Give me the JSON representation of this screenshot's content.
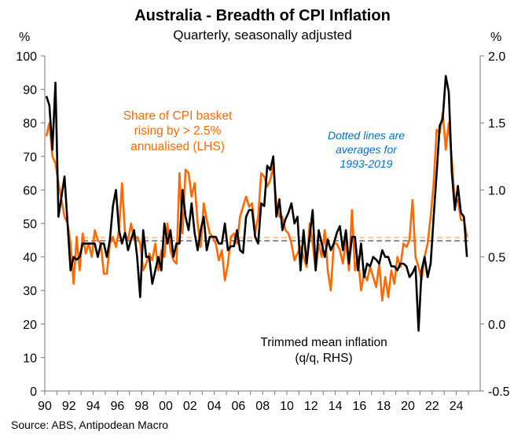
{
  "chart_data": {
    "type": "line",
    "title": "Australia - Breadth of CPI Inflation",
    "subtitle": "Quarterly, seasonally adjusted",
    "ylabel_left": "%",
    "ylabel_right": "%",
    "ylim_left": [
      0,
      100
    ],
    "ylim_right": [
      -0.5,
      2.0
    ],
    "yticks_left": [
      "0",
      "10",
      "20",
      "30",
      "40",
      "50",
      "60",
      "70",
      "80",
      "90",
      "100"
    ],
    "yticks_right": [
      "-0.5",
      "0.0",
      "0.5",
      "1.0",
      "1.5",
      "2.0"
    ],
    "xticks": [
      "90",
      "92",
      "94",
      "96",
      "98",
      "00",
      "02",
      "04",
      "06",
      "08",
      "10",
      "12",
      "14",
      "16",
      "18",
      "20",
      "22",
      "24"
    ],
    "x_start": "1990Q1",
    "x_end": "2024Q4",
    "frequency": "quarterly",
    "grid": false,
    "series": [
      {
        "name": "Share of CPI basket rising by > 2.5% annualised (LHS)",
        "axis": "left",
        "color": "#FF6A00",
        "values": [
          76,
          80,
          70,
          68,
          62,
          57,
          52,
          50,
          44,
          32,
          46,
          36,
          47,
          41,
          44,
          40,
          48,
          45,
          44,
          35,
          35,
          44,
          46,
          43,
          48,
          62,
          47,
          45,
          50,
          45,
          46,
          44,
          36,
          38,
          41,
          39,
          44,
          36,
          42,
          40,
          50,
          42,
          39,
          38,
          65,
          47,
          66,
          65,
          58,
          62,
          50,
          43,
          56,
          51,
          47,
          46,
          44,
          39,
          42,
          33,
          38,
          46,
          47,
          44,
          52,
          55,
          58,
          55,
          56,
          47,
          52,
          65,
          64,
          61,
          63,
          67,
          56,
          52,
          52,
          48,
          47,
          44,
          39,
          41,
          43,
          40,
          37,
          50,
          44,
          36,
          44,
          40,
          48,
          36,
          30,
          44,
          44,
          42,
          38,
          45,
          36,
          54,
          36,
          40,
          30,
          35,
          33,
          37,
          34,
          31,
          38,
          27,
          34,
          28,
          36,
          32,
          40,
          37,
          44,
          43,
          45,
          57,
          40,
          37,
          33,
          40,
          44,
          52,
          62,
          78,
          77,
          83,
          72,
          80,
          69,
          56,
          57,
          51,
          51,
          46
        ],
        "average_1993_2019": 45.8
      },
      {
        "name": "Trimmed mean inflation (q/q, RHS)",
        "axis": "right",
        "color": "#000000",
        "values": [
          1.7,
          1.63,
          1.3,
          1.8,
          0.8,
          0.95,
          1.1,
          0.75,
          0.4,
          0.5,
          0.48,
          0.5,
          0.6,
          0.6,
          0.6,
          0.6,
          0.6,
          0.5,
          0.6,
          0.6,
          0.5,
          0.63,
          0.88,
          1.0,
          0.7,
          0.6,
          0.68,
          0.55,
          0.63,
          0.7,
          0.5,
          0.2,
          0.7,
          0.5,
          0.5,
          0.3,
          0.4,
          0.5,
          0.4,
          0.75,
          0.6,
          0.7,
          0.5,
          0.6,
          0.6,
          1.0,
          0.8,
          0.7,
          0.9,
          0.68,
          0.55,
          0.7,
          0.8,
          0.55,
          0.65,
          0.65,
          0.65,
          0.6,
          0.6,
          0.75,
          0.55,
          0.58,
          0.58,
          0.7,
          0.55,
          0.53,
          0.8,
          0.85,
          0.85,
          0.65,
          0.6,
          0.9,
          0.88,
          1.18,
          1.15,
          1.25,
          0.8,
          0.93,
          0.7,
          0.78,
          0.83,
          0.9,
          0.75,
          0.8,
          0.4,
          0.7,
          0.45,
          0.65,
          0.85,
          0.4,
          0.7,
          0.6,
          0.5,
          0.63,
          0.55,
          0.6,
          0.68,
          0.73,
          0.55,
          0.7,
          0.45,
          0.65,
          0.65,
          0.4,
          0.6,
          0.35,
          0.45,
          0.43,
          0.5,
          0.48,
          0.45,
          0.55,
          0.5,
          0.5,
          0.43,
          0.43,
          0.4,
          0.45,
          0.45,
          0.43,
          0.35,
          0.38,
          0.43,
          -0.05,
          0.4,
          0.5,
          0.35,
          0.45,
          0.8,
          1.13,
          1.48,
          1.53,
          1.85,
          1.73,
          1.13,
          0.85,
          1.03,
          0.83,
          0.8,
          0.5
        ],
        "average_1993_2019": 0.62
      }
    ],
    "annotations": {
      "share_label": [
        "Share of CPI basket",
        "rising by > 2.5%",
        "annualised (LHS)"
      ],
      "averages_note": [
        "Dotted lines are",
        "averages for",
        "1993-2019"
      ],
      "trimmed_label": [
        "Trimmed mean inflation",
        "(q/q, RHS)"
      ]
    },
    "source": "Source: ABS, Antipodean Macro"
  }
}
